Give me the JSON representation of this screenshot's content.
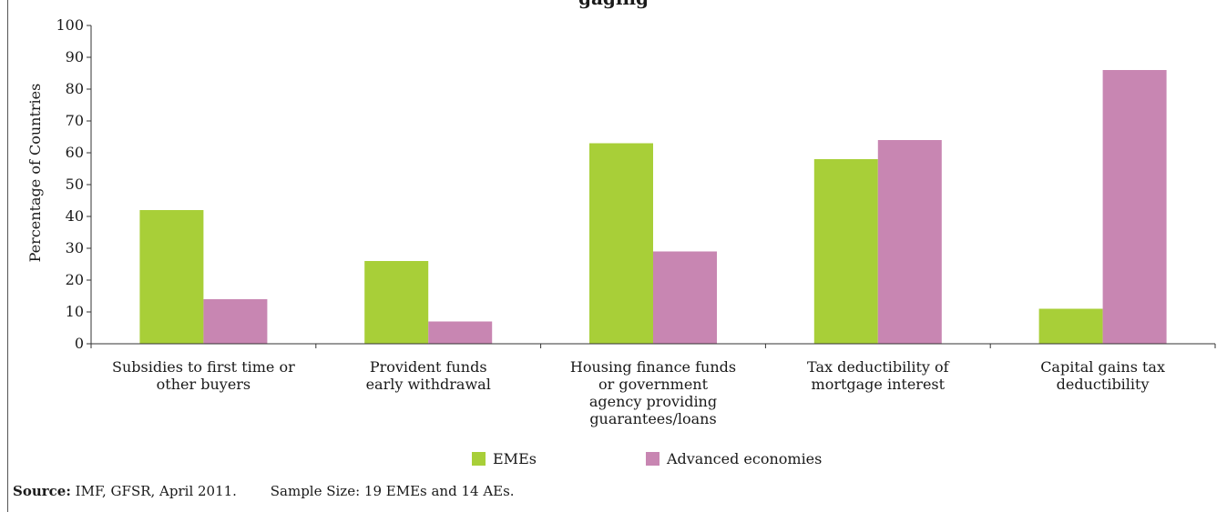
{
  "title_fragment": "gaging",
  "chart_data": {
    "type": "bar",
    "title": "",
    "xlabel": "",
    "ylabel": "Percentage of Countries",
    "ylim": [
      0,
      100
    ],
    "yticks": [
      0,
      10,
      20,
      30,
      40,
      50,
      60,
      70,
      80,
      90,
      100
    ],
    "categories": [
      [
        "Subsidies to first time or",
        "other buyers"
      ],
      [
        "Provident funds",
        "early withdrawal"
      ],
      [
        "Housing finance funds",
        "or government",
        "agency providing",
        "guarantees/loans"
      ],
      [
        "Tax deductibility of",
        "mortgage interest"
      ],
      [
        "Capital gains tax",
        "deductibility"
      ]
    ],
    "series": [
      {
        "name": "EMEs",
        "color": "#a8cf38",
        "values": [
          42,
          26,
          63,
          58,
          11
        ]
      },
      {
        "name": "Advanced economies",
        "color": "#c886b2",
        "values": [
          14,
          7,
          29,
          64,
          86
        ]
      }
    ],
    "grid": false,
    "legend_position": "bottom-center"
  },
  "source": {
    "label": "Source:",
    "text": "IMF, GFSR, April 2011.",
    "sample": "Sample Size: 19 EMEs and 14 AEs."
  }
}
